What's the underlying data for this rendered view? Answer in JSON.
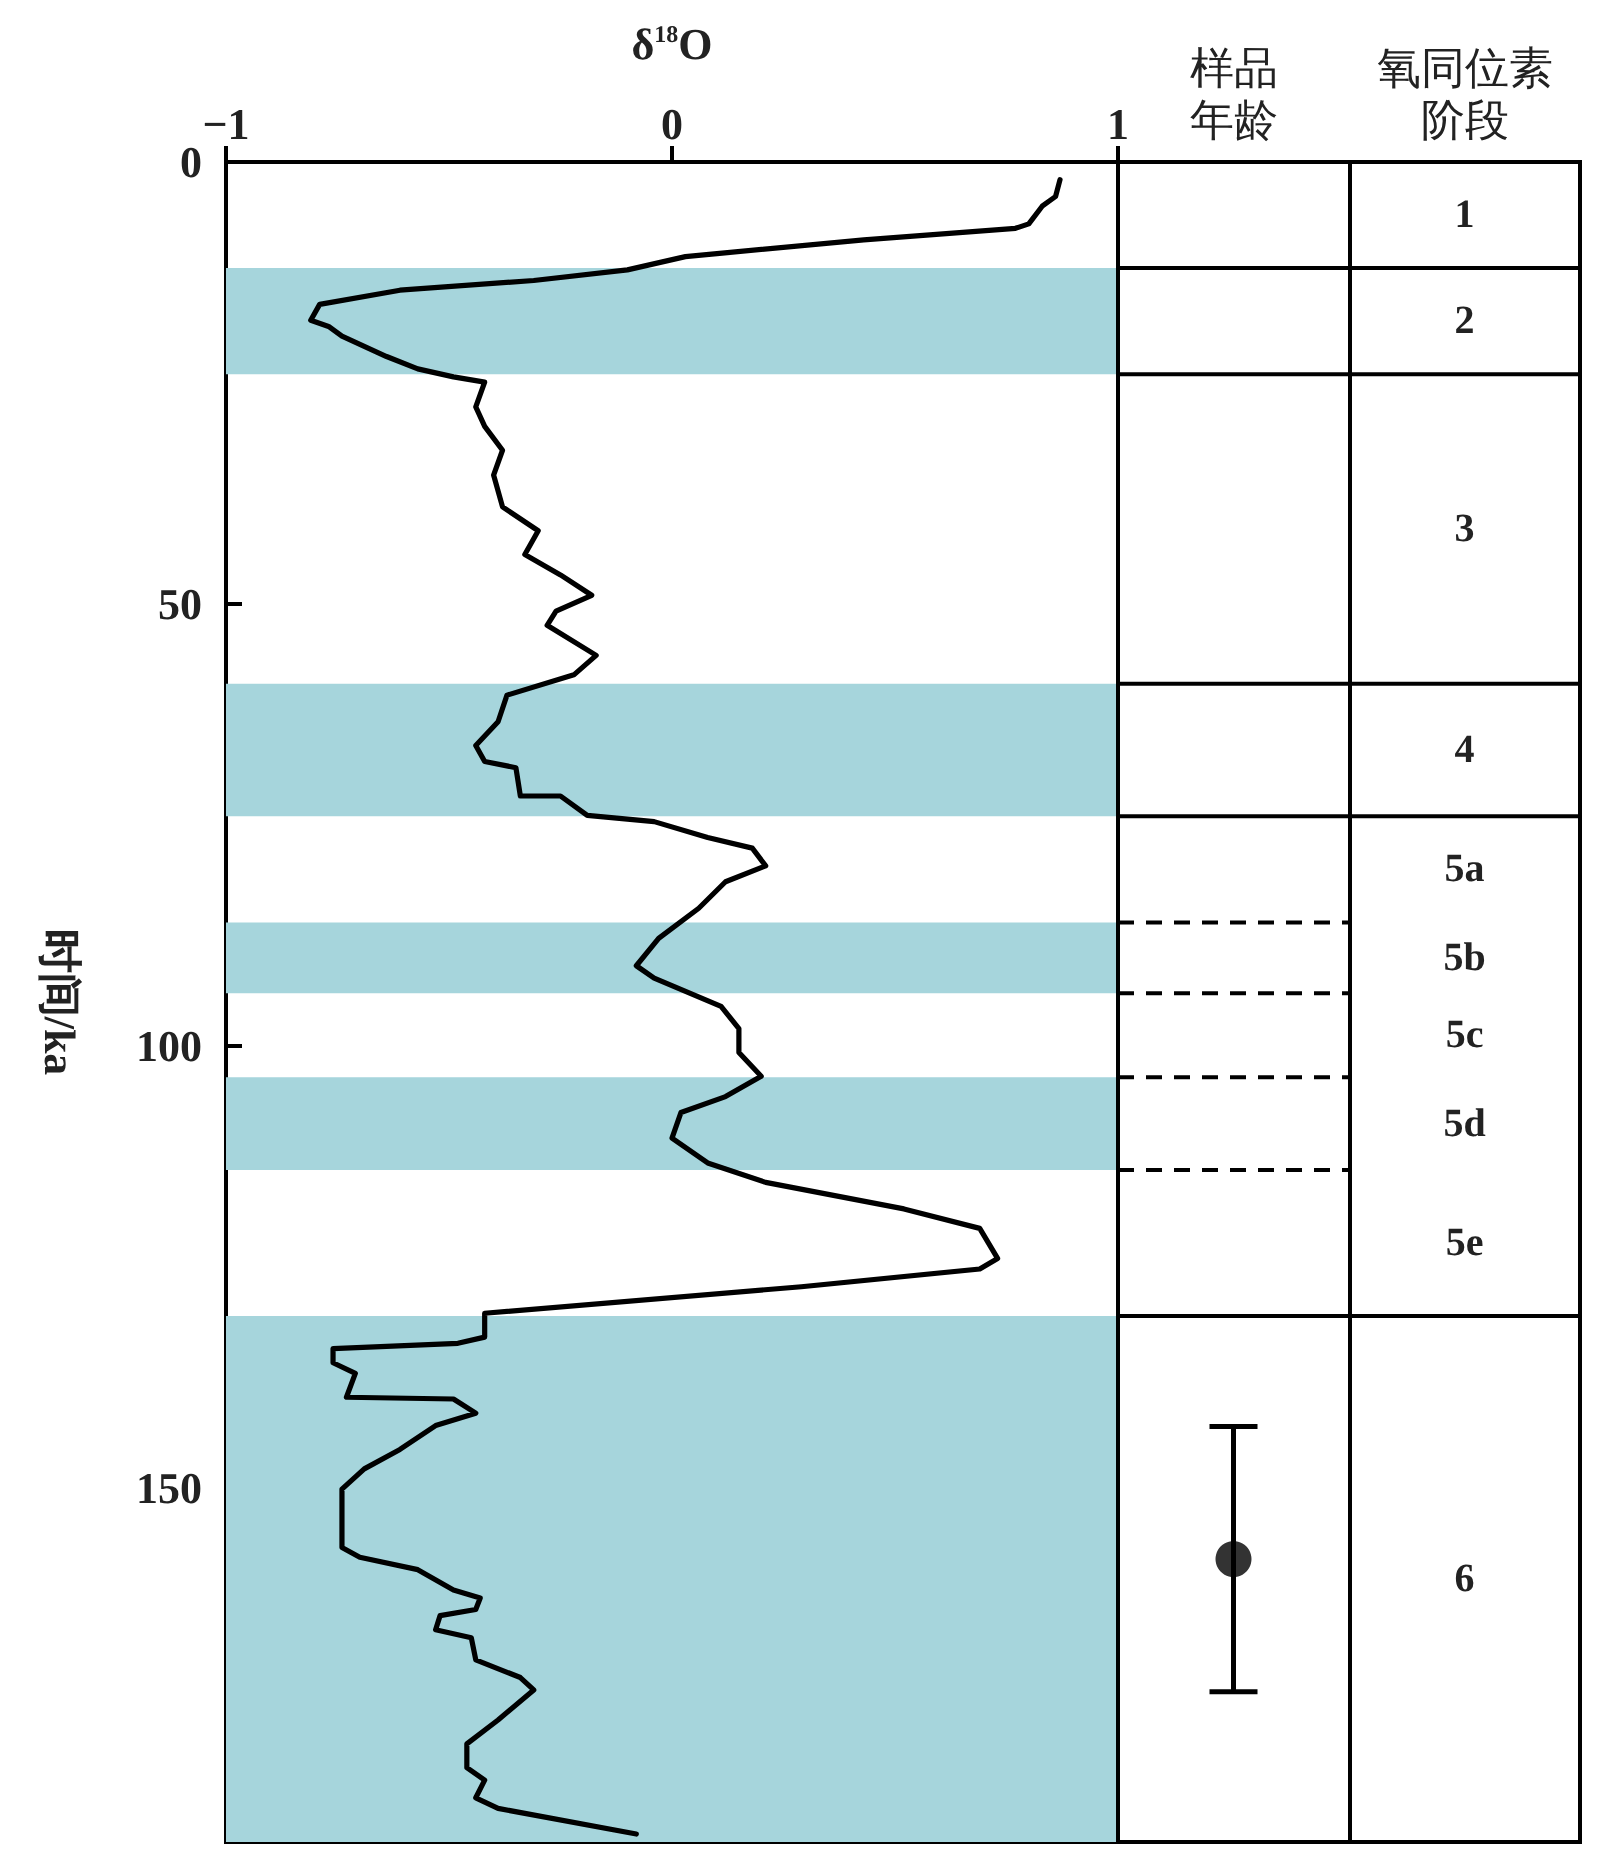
{
  "chart_data": [
    {
      "type": "line",
      "xlabel": "δ$^{18}$O",
      "ylabel": "时间/ka",
      "xlim": [
        -1,
        1
      ],
      "xticks": [
        -1,
        0,
        1
      ],
      "ylim": [
        190,
        0
      ],
      "yticks": [
        0,
        50,
        100,
        150
      ],
      "series": [
        {
          "color": "#000000",
          "x": [
            0.87,
            0.86,
            0.83,
            0.8,
            0.77,
            0.43,
            0.03,
            -0.1,
            -0.31,
            -0.61,
            -0.79,
            -0.81,
            -0.77,
            -0.74,
            -0.64,
            -0.57,
            -0.49,
            -0.42,
            -0.44,
            -0.42,
            -0.38,
            -0.4,
            -0.38,
            -0.3,
            -0.33,
            -0.25,
            -0.18,
            -0.26,
            -0.28,
            -0.17,
            -0.22,
            -0.37,
            -0.39,
            -0.44,
            -0.42,
            -0.35,
            -0.34,
            -0.25,
            -0.19,
            -0.04,
            0.08,
            0.18,
            0.21,
            0.12,
            0.06,
            -0.03,
            -0.08,
            -0.04,
            0.11,
            0.15,
            0.15,
            0.2,
            0.12,
            0.02,
            0.0,
            0.08,
            0.21,
            0.52,
            0.69,
            0.73,
            0.69,
            0.29,
            -0.42,
            -0.42,
            -0.48,
            -0.76,
            -0.76,
            -0.71,
            -0.73,
            -0.49,
            -0.44,
            -0.53,
            -0.61,
            -0.69,
            -0.74,
            -0.74,
            -0.74,
            -0.7,
            -0.57,
            -0.49,
            -0.43,
            -0.44,
            -0.52,
            -0.53,
            -0.45,
            -0.44,
            -0.34,
            -0.31,
            -0.39,
            -0.46,
            -0.46,
            -0.42,
            -0.44,
            -0.39,
            -0.08
          ],
          "values": [
            2.0,
            3.9,
            5.0,
            7.0,
            7.5,
            8.8,
            10.7,
            12.2,
            13.4,
            14.5,
            16.1,
            17.9,
            18.6,
            19.7,
            22.0,
            23.4,
            24.3,
            24.9,
            27.7,
            29.9,
            32.6,
            35.4,
            39.0,
            41.7,
            44.4,
            46.7,
            49.0,
            50.8,
            52.4,
            55.8,
            58.0,
            60.3,
            63.3,
            66.0,
            67.8,
            68.5,
            71.7,
            71.7,
            73.9,
            74.6,
            76.4,
            77.6,
            79.6,
            81.4,
            84.4,
            87.8,
            90.9,
            92.3,
            95.5,
            98.0,
            100.7,
            103.4,
            105.7,
            107.5,
            110.4,
            113.2,
            115.4,
            118.4,
            120.6,
            124.0,
            125.2,
            127.2,
            130.2,
            132.9,
            133.6,
            134.2,
            135.8,
            137.0,
            139.7,
            139.9,
            141.5,
            142.9,
            145.6,
            147.8,
            150.1,
            154.0,
            156.7,
            157.8,
            159.2,
            161.5,
            162.4,
            163.7,
            164.4,
            166.0,
            166.9,
            169.4,
            171.4,
            172.8,
            176.2,
            178.9,
            181.6,
            183.0,
            185.0,
            186.2,
            189.1
          ]
        }
      ],
      "bands": [
        {
          "axis": "y",
          "from": 12,
          "to": 24,
          "color": "#a6d5dc"
        },
        {
          "axis": "y",
          "from": 59,
          "to": 74,
          "color": "#a6d5dc"
        },
        {
          "axis": "y",
          "from": 86,
          "to": 94,
          "color": "#a6d5dc"
        },
        {
          "axis": "y",
          "from": 103.5,
          "to": 114,
          "color": "#a6d5dc"
        },
        {
          "axis": "y",
          "from": 130.5,
          "to": 190,
          "color": "#a6d5dc"
        }
      ]
    },
    {
      "type": "scatter",
      "categories": [
        "样品年龄",
        "氧同位素阶段"
      ],
      "ylim": [
        190,
        0
      ],
      "tick_labels": "x",
      "marker": "circle",
      "series": [
        {
          "color": "#000000",
          "x": [
            "样品年龄"
          ],
          "values": [
            158
          ],
          "errors": [
            [
              143,
              173
            ]
          ]
        }
      ],
      "ref_lines": [
        {
          "axis": "y",
          "value": 12
        },
        {
          "axis": "y",
          "value": 24
        },
        {
          "axis": "y",
          "value": 59
        },
        {
          "axis": "y",
          "value": 74
        },
        {
          "axis": "y",
          "value": 86,
          "line_style": "dashed"
        },
        {
          "axis": "y",
          "value": 94,
          "line_style": "dashed"
        },
        {
          "axis": "y",
          "value": 103.5,
          "line_style": "dashed"
        },
        {
          "axis": "y",
          "value": 114,
          "line_style": "dashed"
        },
        {
          "axis": "y",
          "value": 130.5
        }
      ],
      "annotations": [
        "1",
        "2",
        "3",
        "4",
        "5a",
        "5b",
        "5c",
        "5d",
        "5e",
        "6"
      ]
    }
  ]
}
